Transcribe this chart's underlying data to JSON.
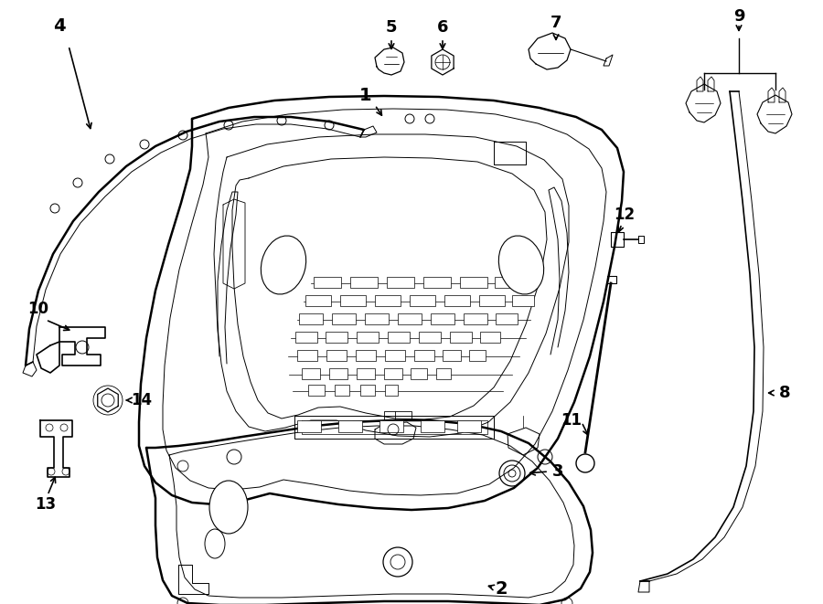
{
  "background_color": "#ffffff",
  "line_color": "#000000",
  "text_color": "#000000",
  "figsize": [
    9.0,
    6.61
  ],
  "dpi": 100
}
